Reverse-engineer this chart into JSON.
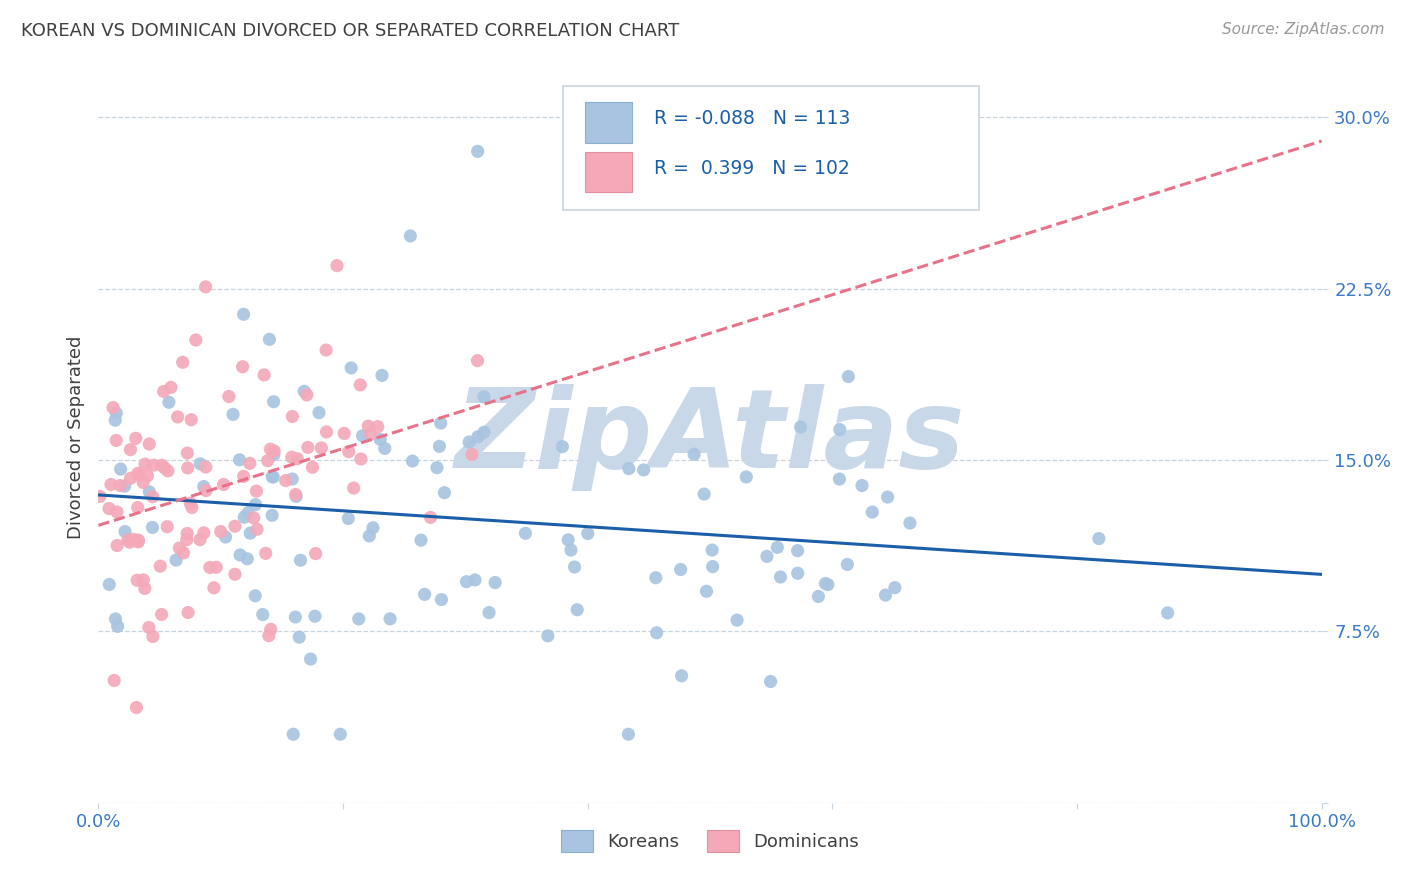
{
  "title": "KOREAN VS DOMINICAN DIVORCED OR SEPARATED CORRELATION CHART",
  "source": "Source: ZipAtlas.com",
  "ylabel": "Divorced or Separated",
  "xlim": [
    0.0,
    1.0
  ],
  "ylim": [
    0.0,
    0.32
  ],
  "yticks": [
    0.0,
    0.075,
    0.15,
    0.225,
    0.3
  ],
  "ytick_labels": [
    "",
    "7.5%",
    "15.0%",
    "22.5%",
    "30.0%"
  ],
  "xtick_positions": [
    0.0,
    0.2,
    0.4,
    0.6,
    0.8,
    1.0
  ],
  "xtick_labels": [
    "0.0%",
    "",
    "",
    "",
    "",
    "100.0%"
  ],
  "korean_R": -0.088,
  "korean_N": 113,
  "dominican_R": 0.399,
  "dominican_N": 102,
  "korean_color": "#a8c4e0",
  "dominican_color": "#f4a8b8",
  "korean_line_color": "#1a5fa8",
  "dominican_line_color": "#e8728a",
  "watermark": "ZipAtlas",
  "watermark_color": "#c8d8e8",
  "tick_color": "#3a7ac8",
  "background_color": "#ffffff",
  "grid_color": "#c8d4de",
  "title_color": "#404040",
  "source_color": "#999999",
  "legend_text_color": "#1a5fa8"
}
